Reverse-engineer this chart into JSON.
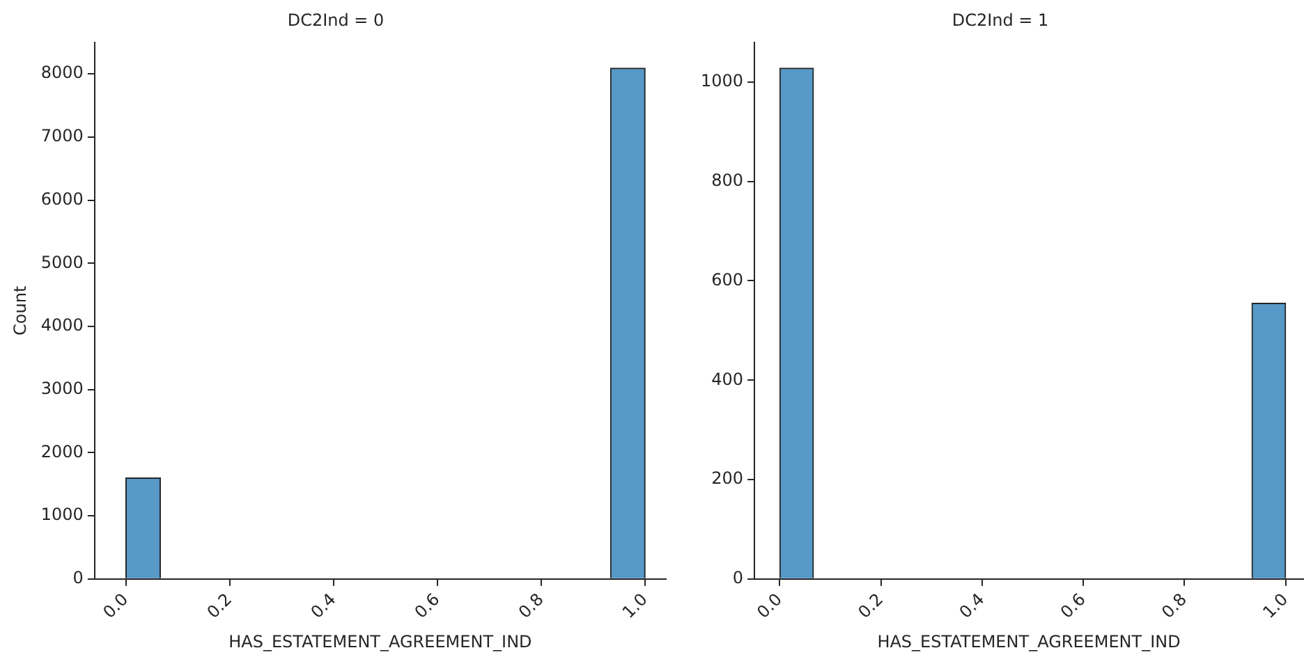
{
  "chart_data": [
    {
      "type": "histogram",
      "title": "DC2Ind = 0",
      "xlabel": "HAS_ESTATEMENT_AGREEMENT_IND",
      "ylabel": "Count",
      "color": "#5799c7",
      "bins": [
        0,
        0.0667,
        0.1333,
        0.2,
        0.2667,
        0.3333,
        0.4,
        0.4667,
        0.5333,
        0.6,
        0.6667,
        0.7333,
        0.8,
        0.8667,
        0.9333,
        1
      ],
      "values": [
        1600,
        0,
        0,
        0,
        0,
        0,
        0,
        0,
        0,
        0,
        0,
        0,
        0,
        0,
        8090
      ],
      "xlim": [
        -0.06,
        1.04
      ],
      "xticks": [
        {
          "value": 0,
          "label": "0.0"
        },
        {
          "value": 0.2,
          "label": "0.2"
        },
        {
          "value": 0.4,
          "label": "0.4"
        },
        {
          "value": 0.6,
          "label": "0.6"
        },
        {
          "value": 0.8,
          "label": "0.8"
        },
        {
          "value": 1,
          "label": "1.0"
        }
      ],
      "ylim": [
        0,
        8500
      ],
      "yticks": [
        0,
        1000,
        2000,
        3000,
        4000,
        5000,
        6000,
        7000,
        8000
      ],
      "grid": false
    },
    {
      "type": "histogram",
      "title": "DC2Ind = 1",
      "xlabel": "HAS_ESTATEMENT_AGREEMENT_IND",
      "color": "#5799c7",
      "bins": [
        0,
        0.0667,
        0.1333,
        0.2,
        0.2667,
        0.3333,
        0.4,
        0.4667,
        0.5333,
        0.6,
        0.6667,
        0.7333,
        0.8,
        0.8667,
        0.9333,
        1
      ],
      "values": [
        1028,
        0,
        0,
        0,
        0,
        0,
        0,
        0,
        0,
        0,
        0,
        0,
        0,
        0,
        555
      ],
      "xlim": [
        -0.05,
        1.035
      ],
      "xticks": [
        {
          "value": 0,
          "label": "0.0"
        },
        {
          "value": 0.2,
          "label": "0.2"
        },
        {
          "value": 0.4,
          "label": "0.4"
        },
        {
          "value": 0.6,
          "label": "0.6"
        },
        {
          "value": 0.8,
          "label": "0.8"
        },
        {
          "value": 1,
          "label": "1.0"
        }
      ],
      "ylim": [
        0,
        1080
      ],
      "yticks": [
        0,
        200,
        400,
        600,
        800,
        1000
      ],
      "grid": false
    }
  ]
}
